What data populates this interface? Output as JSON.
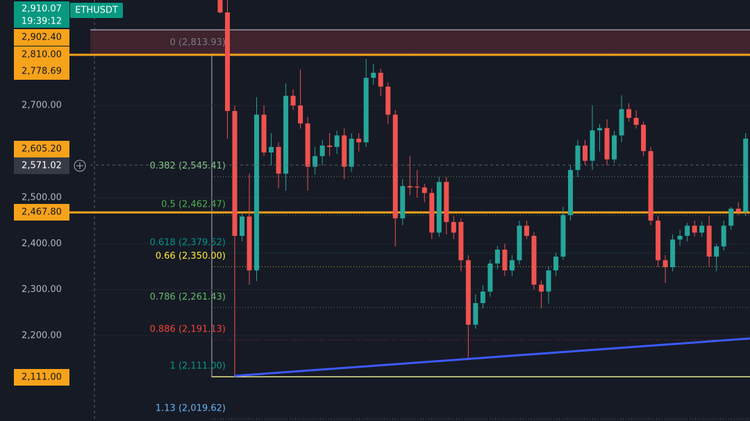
{
  "symbol": "ETHUSDT",
  "last_price": {
    "price": "2,910.07",
    "time": "19:39:12"
  },
  "crosshair_price": "2,571.02",
  "price_axis": {
    "ylim": [
      2015,
      2929
    ],
    "ticks": [
      {
        "value": 2700,
        "label": "2,700.00"
      },
      {
        "value": 2500,
        "label": "2,500.00"
      },
      {
        "value": 2400,
        "label": "2,400.00"
      },
      {
        "value": 2300,
        "label": "2,300.00"
      },
      {
        "value": 2200,
        "label": "2,200.00"
      }
    ]
  },
  "price_tags": [
    {
      "value": 2902.4,
      "label": "2,902.40"
    },
    {
      "value": 2810,
      "label": "2,810.00"
    },
    {
      "value": 2778.69,
      "label": "2,778.69"
    },
    {
      "value": 2605.2,
      "label": "2,605.20"
    },
    {
      "value": 2467.8,
      "label": "2,467.80"
    },
    {
      "value": 2111,
      "label": "2,111.00"
    }
  ],
  "fib_levels": [
    {
      "value": 2813.93,
      "label": "0 (2,813.93)",
      "color": "#787b86"
    },
    {
      "value": 2545.41,
      "label": "0.382 (2,545.41)",
      "color": "#81c784"
    },
    {
      "value": 2462.47,
      "label": "0.5 (2,462.47)",
      "color": "#4caf50"
    },
    {
      "value": 2379.52,
      "label": "0.618 (2,379.52)",
      "color": "#009688"
    },
    {
      "value": 2350,
      "label": "0.66 (2,350.00)",
      "color": "#ffeb3b"
    },
    {
      "value": 2261.43,
      "label": "0.786 (2,261.43)",
      "color": "#66bb6a"
    },
    {
      "value": 2191.13,
      "label": "0.886 (2,191.13)",
      "color": "#f44336"
    },
    {
      "value": 2111,
      "label": "1 (2,111.00)",
      "color": "#089981"
    },
    {
      "value": 2019.62,
      "label": "1.13 (2,019.62)",
      "color": "#64b5f6"
    }
  ],
  "candles": [
    [
      2929,
      2935,
      2900,
      2902
    ],
    [
      2902,
      2929,
      2628,
      2688
    ],
    [
      2688,
      2700,
      2111,
      2417
    ],
    [
      2417,
      2465,
      2405,
      2459
    ],
    [
      2459,
      2552,
      2311,
      2342
    ],
    [
      2342,
      2718,
      2319,
      2680
    ],
    [
      2680,
      2700,
      2590,
      2598
    ],
    [
      2598,
      2640,
      2570,
      2610
    ],
    [
      2610,
      2620,
      2520,
      2552
    ],
    [
      2552,
      2748,
      2515,
      2721
    ],
    [
      2721,
      2735,
      2690,
      2700
    ],
    [
      2700,
      2778,
      2650,
      2661
    ],
    [
      2661,
      2675,
      2515,
      2567
    ],
    [
      2567,
      2610,
      2550,
      2590
    ],
    [
      2590,
      2625,
      2570,
      2613
    ],
    [
      2613,
      2640,
      2590,
      2610
    ],
    [
      2610,
      2645,
      2595,
      2635
    ],
    [
      2635,
      2650,
      2540,
      2567
    ],
    [
      2567,
      2640,
      2555,
      2628
    ],
    [
      2628,
      2640,
      2600,
      2620
    ],
    [
      2620,
      2801,
      2610,
      2760
    ],
    [
      2760,
      2790,
      2745,
      2771
    ],
    [
      2771,
      2780,
      2720,
      2741
    ],
    [
      2741,
      2750,
      2660,
      2680
    ],
    [
      2680,
      2690,
      2394,
      2455
    ],
    [
      2455,
      2540,
      2440,
      2525
    ],
    [
      2525,
      2590,
      2505,
      2522
    ],
    [
      2524,
      2560,
      2500,
      2522
    ],
    [
      2522,
      2530,
      2490,
      2510
    ],
    [
      2510,
      2520,
      2410,
      2424
    ],
    [
      2424,
      2545,
      2415,
      2534
    ],
    [
      2534,
      2545,
      2420,
      2447
    ],
    [
      2447,
      2460,
      2410,
      2424
    ],
    [
      2447,
      2455,
      2340,
      2364
    ],
    [
      2364,
      2375,
      2153,
      2224
    ],
    [
      2224,
      2290,
      2215,
      2271
    ],
    [
      2271,
      2310,
      2260,
      2296
    ],
    [
      2296,
      2365,
      2285,
      2357
    ],
    [
      2357,
      2395,
      2345,
      2387
    ],
    [
      2387,
      2400,
      2330,
      2342
    ],
    [
      2342,
      2375,
      2330,
      2364
    ],
    [
      2364,
      2450,
      2355,
      2439
    ],
    [
      2439,
      2450,
      2410,
      2417
    ],
    [
      2417,
      2425,
      2300,
      2311
    ],
    [
      2311,
      2320,
      2260,
      2296
    ],
    [
      2296,
      2350,
      2270,
      2342
    ],
    [
      2342,
      2380,
      2330,
      2372
    ],
    [
      2372,
      2480,
      2365,
      2462
    ],
    [
      2462,
      2570,
      2450,
      2560
    ],
    [
      2560,
      2625,
      2545,
      2613
    ],
    [
      2613,
      2625,
      2570,
      2580
    ],
    [
      2580,
      2700,
      2560,
      2646
    ],
    [
      2646,
      2660,
      2600,
      2651
    ],
    [
      2651,
      2670,
      2570,
      2583
    ],
    [
      2583,
      2645,
      2575,
      2635
    ],
    [
      2635,
      2722,
      2620,
      2692
    ],
    [
      2692,
      2705,
      2665,
      2673
    ],
    [
      2673,
      2690,
      2650,
      2658
    ],
    [
      2658,
      2665,
      2590,
      2601
    ],
    [
      2601,
      2610,
      2440,
      2450
    ],
    [
      2450,
      2460,
      2350,
      2364
    ],
    [
      2364,
      2375,
      2315,
      2349
    ],
    [
      2349,
      2420,
      2340,
      2409
    ],
    [
      2409,
      2430,
      2395,
      2417
    ],
    [
      2417,
      2445,
      2405,
      2439
    ],
    [
      2439,
      2450,
      2415,
      2424
    ],
    [
      2424,
      2448,
      2415,
      2439
    ],
    [
      2439,
      2460,
      2350,
      2372
    ],
    [
      2372,
      2400,
      2340,
      2394
    ],
    [
      2394,
      2450,
      2385,
      2439
    ],
    [
      2439,
      2480,
      2430,
      2476
    ],
    [
      2476,
      2490,
      2462,
      2469
    ],
    [
      2469,
      2640,
      2460,
      2628
    ]
  ]
}
